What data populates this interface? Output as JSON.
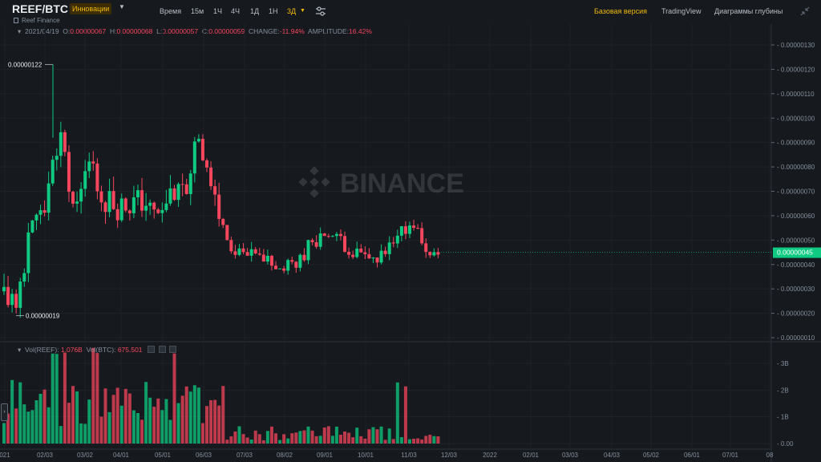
{
  "header": {
    "pair": "REEF/BTC",
    "tag": "Инновации",
    "subtitle": "Reef Finance",
    "intervals": [
      "Время",
      "15м",
      "1Ч",
      "4Ч",
      "1Д",
      "1Н",
      "3Д"
    ],
    "active_interval": "3Д",
    "nav": [
      "Базовая версия",
      "TradingView",
      "Диаграммы глубины"
    ],
    "active_nav": "Базовая версия"
  },
  "ohlc_legend": {
    "date": "2021/04/19",
    "o_label": "O:",
    "o": "0.00000067",
    "h_label": "H:",
    "h": "0.00000068",
    "l_label": "L:",
    "l": "0.00000057",
    "c_label": "C:",
    "c": "0.00000059",
    "change_label": "CHANGE:",
    "change": "-11.94%",
    "amplitude_label": "AMPLITUDE:",
    "amplitude": "16.42%"
  },
  "volume_legend": {
    "label1": "Vol(REEF):",
    "value1": "1.076B",
    "label2": "Vol(BTC):",
    "value2": "675.501"
  },
  "watermark": "BINANCE",
  "colors": {
    "up": "#0ecb81",
    "down": "#f6465d",
    "accent": "#f0b90b",
    "last_price_bg": "#0ecb81"
  },
  "chart_data": {
    "type": "candlestick",
    "price_axis": {
      "ticks": [
        "0.00000130",
        "0.00000120",
        "0.00000110",
        "0.00000100",
        "0.00000090",
        "0.00000080",
        "0.00000070",
        "0.00000060",
        "0.00000050",
        "0.00000040",
        "0.00000030",
        "0.00000020",
        "0.00000010"
      ],
      "range": [
        7e-08,
        1.35e-06
      ]
    },
    "volume_axis": {
      "ticks": [
        "3B",
        "2B",
        "1B",
        "0.00"
      ],
      "ticks_values": [
        3,
        2,
        1,
        0
      ],
      "range": [
        0,
        3.6
      ]
    },
    "x_ticks": [
      "021",
      "02/03",
      "03/02",
      "04/01",
      "05/01",
      "06/03",
      "07/03",
      "08/02",
      "09/01",
      "10/01",
      "11/03",
      "12/03",
      "2022",
      "02/01",
      "03/03",
      "04/03",
      "05/02",
      "06/01",
      "07/01",
      "08"
    ],
    "high_label": "0.00000122",
    "low_label": "0.00000019",
    "last_price": "0.00000045",
    "last_price_value": 4.5e-07
  }
}
